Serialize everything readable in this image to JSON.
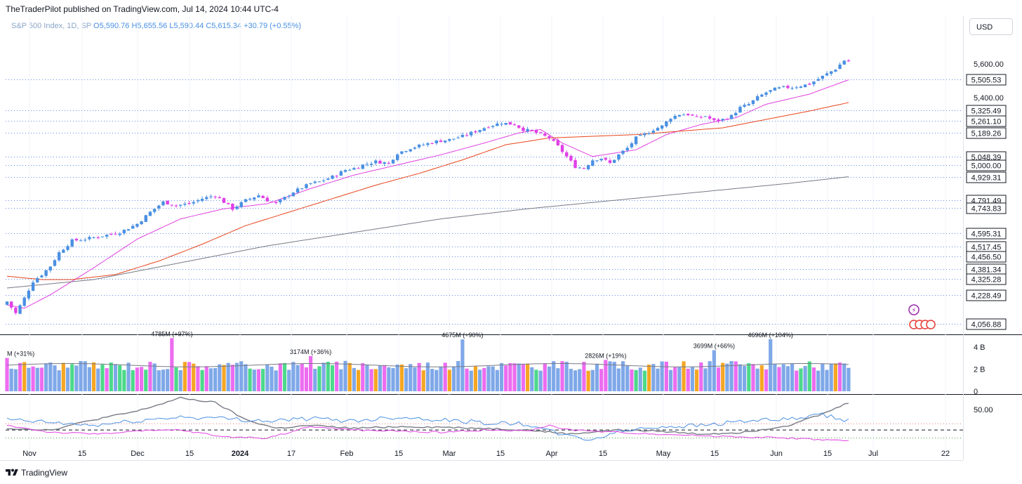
{
  "header": {
    "published": "TheTraderPilot published on TradingView.com, Jul 14, 2024 10:44 UTC-4"
  },
  "legend": {
    "symbol": "S&P 500 Index, 1D, SP",
    "open": "O5,590.76",
    "high": "H5,655.56",
    "low": "L5,590.44",
    "close": "C5,615.34",
    "change": "+30.79 (+0.55%)"
  },
  "currency": "USD",
  "footer": {
    "brand": "TradingView"
  },
  "colors": {
    "up": "#4a90e2",
    "down": "#e040e8",
    "ma_short": "#e040e0",
    "ma_mid": "#e8451c",
    "ma_long": "#787b86",
    "level_line": "#5b8ee6",
    "vol_blue": "#7fa8e8",
    "vol_pink": "#ec6cf0",
    "vol_green": "#4cd98a",
    "vol_orange": "#f5a623"
  },
  "chart_data": [
    {
      "type": "candlestick",
      "title": "S&P 500 Index, 1D, SP",
      "x_tick_labels": [
        "Nov",
        "15",
        "Dec",
        "15",
        "2024",
        "17",
        "Feb",
        "15",
        "Mar",
        "15",
        "Apr",
        "15",
        "May",
        "15",
        "Jun",
        "15",
        "Jul",
        "22"
      ],
      "y_tick_labels": [
        "5,600.00",
        "5,400.00"
      ],
      "ylim": [
        4020,
        5720
      ],
      "horizontal_levels": [
        5505.53,
        5325.49,
        5261.1,
        5189.26,
        5048.39,
        5000.0,
        4929.31,
        4791.49,
        4743.83,
        4595.31,
        4517.45,
        4456.5,
        4381.34,
        4325.28,
        4228.49,
        4056.88
      ],
      "level_labels": [
        "5,505.53",
        "5,325.49",
        "5,261.10",
        "5,189.26",
        "5,048.39",
        "5,000.00",
        "4,929.31",
        "4,791.49",
        "4,743.83",
        "4,595.31",
        "4,517.45",
        "4,456.50",
        "4,381.34",
        "4,325.28",
        "4,228.49",
        "4,056.88"
      ],
      "close_anchors": [
        [
          0,
          4190
        ],
        [
          2,
          4120
        ],
        [
          4,
          4210
        ],
        [
          6,
          4310
        ],
        [
          8,
          4350
        ],
        [
          10,
          4400
        ],
        [
          12,
          4480
        ],
        [
          15,
          4550
        ],
        [
          18,
          4560
        ],
        [
          22,
          4580
        ],
        [
          26,
          4600
        ],
        [
          30,
          4650
        ],
        [
          33,
          4720
        ],
        [
          36,
          4780
        ],
        [
          39,
          4760
        ],
        [
          42,
          4770
        ],
        [
          45,
          4800
        ],
        [
          48,
          4820
        ],
        [
          50,
          4780
        ],
        [
          52,
          4740
        ],
        [
          55,
          4790
        ],
        [
          58,
          4820
        ],
        [
          60,
          4790
        ],
        [
          62,
          4770
        ],
        [
          66,
          4840
        ],
        [
          70,
          4890
        ],
        [
          72,
          4900
        ],
        [
          75,
          4930
        ],
        [
          78,
          4970
        ],
        [
          80,
          4980
        ],
        [
          82,
          5000
        ],
        [
          85,
          5020
        ],
        [
          88,
          5010
        ],
        [
          90,
          5070
        ],
        [
          93,
          5100
        ],
        [
          96,
          5120
        ],
        [
          99,
          5140
        ],
        [
          102,
          5150
        ],
        [
          105,
          5170
        ],
        [
          108,
          5200
        ],
        [
          111,
          5230
        ],
        [
          114,
          5250
        ],
        [
          117,
          5240
        ],
        [
          119,
          5210
        ],
        [
          121,
          5200
        ],
        [
          123,
          5180
        ],
        [
          125,
          5160
        ],
        [
          127,
          5110
        ],
        [
          129,
          5050
        ],
        [
          131,
          4990
        ],
        [
          133,
          4980
        ],
        [
          135,
          5030
        ],
        [
          137,
          5040
        ],
        [
          139,
          5010
        ],
        [
          141,
          5060
        ],
        [
          143,
          5100
        ],
        [
          145,
          5160
        ],
        [
          147,
          5180
        ],
        [
          149,
          5210
        ],
        [
          151,
          5230
        ],
        [
          153,
          5280
        ],
        [
          155,
          5300
        ],
        [
          157,
          5300
        ],
        [
          159,
          5280
        ],
        [
          161,
          5290
        ],
        [
          163,
          5260
        ],
        [
          165,
          5270
        ],
        [
          167,
          5290
        ],
        [
          169,
          5340
        ],
        [
          171,
          5360
        ],
        [
          173,
          5400
        ],
        [
          175,
          5430
        ],
        [
          177,
          5450
        ],
        [
          179,
          5460
        ],
        [
          181,
          5460
        ],
        [
          183,
          5470
        ],
        [
          185,
          5480
        ],
        [
          187,
          5510
        ],
        [
          189,
          5540
        ],
        [
          191,
          5570
        ],
        [
          193,
          5620
        ],
        [
          194,
          5615
        ]
      ],
      "moving_averages": [
        {
          "name": "",
          "color": "#e040e0",
          "points": [
            [
              0,
              4170
            ],
            [
              4,
              4150
            ],
            [
              10,
              4230
            ],
            [
              20,
              4390
            ],
            [
              30,
              4560
            ],
            [
              40,
              4680
            ],
            [
              50,
              4740
            ],
            [
              60,
              4770
            ],
            [
              70,
              4860
            ],
            [
              80,
              4940
            ],
            [
              90,
              5000
            ],
            [
              100,
              5060
            ],
            [
              110,
              5130
            ],
            [
              118,
              5190
            ],
            [
              123,
              5210
            ],
            [
              128,
              5130
            ],
            [
              135,
              5050
            ],
            [
              145,
              5090
            ],
            [
              152,
              5180
            ],
            [
              160,
              5240
            ],
            [
              168,
              5280
            ],
            [
              175,
              5360
            ],
            [
              185,
              5420
            ],
            [
              194,
              5505
            ]
          ]
        },
        {
          "name": "",
          "color": "#e8451c",
          "points": [
            [
              0,
              4340
            ],
            [
              8,
              4320
            ],
            [
              15,
              4320
            ],
            [
              25,
              4350
            ],
            [
              35,
              4430
            ],
            [
              45,
              4530
            ],
            [
              55,
              4640
            ],
            [
              65,
              4720
            ],
            [
              75,
              4800
            ],
            [
              85,
              4880
            ],
            [
              95,
              4950
            ],
            [
              105,
              5030
            ],
            [
              115,
              5120
            ],
            [
              125,
              5160
            ],
            [
              135,
              5170
            ],
            [
              145,
              5180
            ],
            [
              155,
              5200
            ],
            [
              165,
              5220
            ],
            [
              175,
              5270
            ],
            [
              185,
              5320
            ],
            [
              194,
              5370
            ]
          ]
        },
        {
          "name": "",
          "color": "#787b86",
          "points": [
            [
              0,
              4270
            ],
            [
              20,
              4320
            ],
            [
              40,
              4420
            ],
            [
              60,
              4520
            ],
            [
              80,
              4600
            ],
            [
              100,
              4680
            ],
            [
              120,
              4740
            ],
            [
              140,
              4790
            ],
            [
              160,
              4840
            ],
            [
              180,
              4890
            ],
            [
              194,
              4930
            ]
          ]
        }
      ],
      "candle_count": 195
    },
    {
      "type": "bar",
      "title": "Volume",
      "y_tick_labels": [
        "4 B",
        "2 B",
        "0"
      ],
      "ylim": [
        0,
        5000
      ],
      "annotations": [
        {
          "index": 0,
          "label": "M (+31%)",
          "value": 3000
        },
        {
          "index": 38,
          "label": "4785M (+97%)",
          "value": 4785
        },
        {
          "index": 70,
          "label": "3174M (+36%)",
          "value": 3174
        },
        {
          "index": 105,
          "label": "4675M (+90%)",
          "value": 4675
        },
        {
          "index": 138,
          "label": "2826M (+19%)",
          "value": 2826
        },
        {
          "index": 163,
          "label": "3699M (+66%)",
          "value": 3699
        },
        {
          "index": 176,
          "label": "4696M (+104%)",
          "value": 4696
        }
      ],
      "typical_value": 2300
    },
    {
      "type": "line",
      "title": "Oscillator",
      "y_tick_labels": [
        "50.00"
      ],
      "ylim": [
        0,
        80
      ],
      "series": [
        {
          "name": "",
          "color": "#787b86",
          "points": [
            [
              0,
              25
            ],
            [
              10,
              22
            ],
            [
              20,
              40
            ],
            [
              30,
              55
            ],
            [
              40,
              78
            ],
            [
              48,
              70
            ],
            [
              55,
              40
            ],
            [
              62,
              25
            ],
            [
              70,
              30
            ],
            [
              80,
              25
            ],
            [
              90,
              28
            ],
            [
              100,
              27
            ],
            [
              110,
              25
            ],
            [
              120,
              22
            ],
            [
              130,
              15
            ],
            [
              140,
              22
            ],
            [
              150,
              20
            ],
            [
              160,
              15
            ],
            [
              170,
              18
            ],
            [
              180,
              30
            ],
            [
              188,
              50
            ],
            [
              194,
              70
            ]
          ]
        },
        {
          "name": "",
          "color": "#4a90e2",
          "points": [
            [
              0,
              40
            ],
            [
              10,
              35
            ],
            [
              20,
              30
            ],
            [
              30,
              38
            ],
            [
              40,
              45
            ],
            [
              50,
              42
            ],
            [
              60,
              38
            ],
            [
              70,
              42
            ],
            [
              80,
              38
            ],
            [
              90,
              45
            ],
            [
              100,
              40
            ],
            [
              110,
              35
            ],
            [
              120,
              32
            ],
            [
              125,
              20
            ],
            [
              130,
              10
            ],
            [
              135,
              5
            ],
            [
              140,
              18
            ],
            [
              150,
              28
            ],
            [
              160,
              30
            ],
            [
              170,
              38
            ],
            [
              180,
              40
            ],
            [
              188,
              48
            ],
            [
              194,
              38
            ]
          ]
        },
        {
          "name": "",
          "color": "#e040e0",
          "points": [
            [
              0,
              30
            ],
            [
              10,
              18
            ],
            [
              20,
              15
            ],
            [
              30,
              20
            ],
            [
              40,
              22
            ],
            [
              50,
              10
            ],
            [
              60,
              8
            ],
            [
              70,
              28
            ],
            [
              80,
              22
            ],
            [
              90,
              20
            ],
            [
              100,
              18
            ],
            [
              110,
              22
            ],
            [
              120,
              20
            ],
            [
              125,
              30
            ],
            [
              130,
              22
            ],
            [
              140,
              18
            ],
            [
              150,
              15
            ],
            [
              160,
              12
            ],
            [
              170,
              10
            ],
            [
              180,
              8
            ],
            [
              188,
              5
            ],
            [
              194,
              3
            ]
          ]
        }
      ],
      "reference_lines": [
        33,
        22,
        8
      ]
    }
  ]
}
